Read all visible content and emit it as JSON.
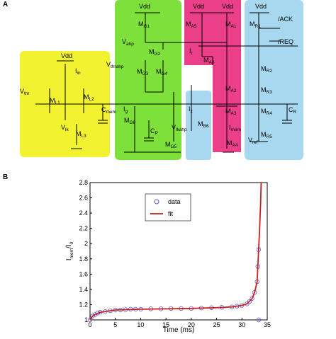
{
  "diagram": {
    "panel_label": "A",
    "labels": [
      {
        "base": "Vdd"
      },
      {
        "base": "I",
        "sub": "in"
      },
      {
        "base": "V",
        "sub": "thr"
      },
      {
        "base": "M",
        "sub": "L1"
      },
      {
        "base": "M",
        "sub": "L2"
      },
      {
        "base": "C",
        "sub": "mem"
      },
      {
        "base": "V",
        "sub": "lk"
      },
      {
        "base": "M",
        "sub": "L3"
      },
      {
        "base": "Vdd"
      },
      {
        "base": "M",
        "sub": "G1"
      },
      {
        "base": "V",
        "sub": "ahp"
      },
      {
        "base": "M",
        "sub": "G2"
      },
      {
        "base": "V",
        "sub": "thrahp"
      },
      {
        "base": "M",
        "sub": "G3"
      },
      {
        "base": "M",
        "sub": "G4"
      },
      {
        "base": "I",
        "sub": "g"
      },
      {
        "base": "M",
        "sub": "G6"
      },
      {
        "base": "C",
        "sub": "P"
      },
      {
        "base": "V",
        "sub": "lkahp"
      },
      {
        "base": "M",
        "sub": "G5"
      },
      {
        "base": "Vdd"
      },
      {
        "base": "Vdd"
      },
      {
        "base": "M",
        "sub": "A5"
      },
      {
        "base": "M",
        "sub": "A1"
      },
      {
        "base": "I",
        "sub": "r"
      },
      {
        "base": "M",
        "sub": "A6"
      },
      {
        "base": "M",
        "sub": "A2"
      },
      {
        "base": "I",
        "sub": "x"
      },
      {
        "base": "M",
        "sub": "B6"
      },
      {
        "base": "M",
        "sub": "A3"
      },
      {
        "base": "I",
        "sub": "mem"
      },
      {
        "base": "M",
        "sub": "A4"
      },
      {
        "base": "V",
        "sub": "ref"
      },
      {
        "base": "Vdd"
      },
      {
        "base": "M",
        "sub": "R1"
      },
      {
        "base": "/ACK"
      },
      {
        "base": "/REQ"
      },
      {
        "base": "M",
        "sub": "R2"
      },
      {
        "base": "M",
        "sub": "R3"
      },
      {
        "base": "M",
        "sub": "R4"
      },
      {
        "base": "M",
        "sub": "R5"
      },
      {
        "base": "C",
        "sub": "R"
      }
    ]
  },
  "chart_data": {
    "type": "scatter-line",
    "panel_label": "B",
    "xlabel": "Time (ms)",
    "ylabel": {
      "base": "I",
      "sub1": "mem",
      "mid": "/I",
      "sub2": "0"
    },
    "xlim": [
      0,
      35
    ],
    "xticks": [
      0,
      5,
      10,
      15,
      20,
      25,
      30,
      35
    ],
    "ylim": [
      1,
      2.8
    ],
    "yticks": [
      1,
      1.2,
      1.4,
      1.6,
      1.8,
      2,
      2.2,
      2.4,
      2.6,
      2.8
    ],
    "legend": "upper center",
    "series": [
      {
        "name": "data",
        "color": "#5b5bd6",
        "marker": "circle",
        "x": [
          0,
          0.5,
          1,
          1.5,
          2,
          3,
          4,
          5,
          6,
          7,
          8,
          9,
          10,
          12,
          14,
          16,
          18,
          20,
          22,
          24,
          26,
          28,
          29,
          30,
          31,
          31.5,
          32,
          32.5,
          33,
          33.15,
          33.3,
          33.3
        ],
        "values": [
          1.0,
          1.05,
          1.07,
          1.09,
          1.1,
          1.11,
          1.12,
          1.13,
          1.13,
          1.135,
          1.14,
          1.14,
          1.14,
          1.145,
          1.145,
          1.15,
          1.15,
          1.15,
          1.155,
          1.16,
          1.165,
          1.17,
          1.18,
          1.19,
          1.21,
          1.24,
          1.28,
          1.36,
          1.5,
          1.7,
          1.92,
          1.0
        ]
      },
      {
        "name": "fit",
        "color": "#cc1f1f",
        "marker": "line",
        "x": [
          0,
          0.5,
          1,
          2,
          3,
          5,
          10,
          15,
          20,
          25,
          28,
          30,
          31,
          32,
          32.5,
          33,
          33.3,
          33.5,
          33.7,
          33.8
        ],
        "values": [
          1.0,
          1.05,
          1.07,
          1.1,
          1.11,
          1.13,
          1.14,
          1.145,
          1.15,
          1.16,
          1.17,
          1.19,
          1.21,
          1.28,
          1.36,
          1.5,
          1.92,
          2.2,
          2.55,
          2.8
        ]
      }
    ]
  }
}
